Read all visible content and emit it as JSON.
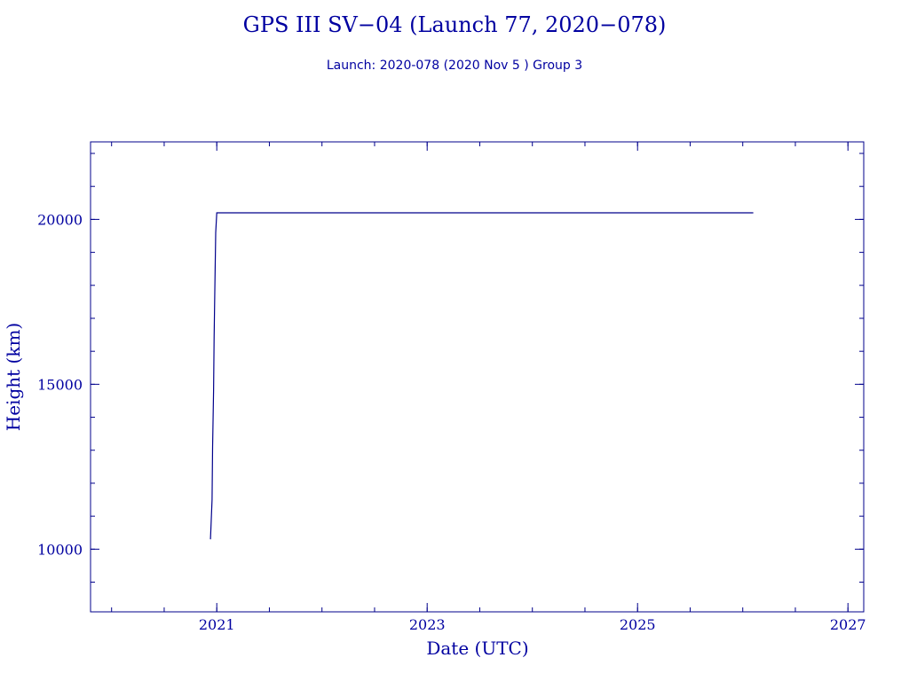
{
  "chart_data": {
    "type": "line",
    "title": "GPS III SV−04 (Launch 77, 2020−078)",
    "subtitle": "Launch: 2020-078  (2020 Nov  5 )  Group 3",
    "xlabel": "Date (UTC)",
    "ylabel": "Height (km)",
    "xlim": [
      2019.8,
      2027.15
    ],
    "ylim": [
      8100,
      22350
    ],
    "x_ticks": [
      2021,
      2023,
      2025,
      2027
    ],
    "y_ticks": [
      10000,
      15000,
      20000
    ],
    "grid": false,
    "series": [
      {
        "x": [
          2020.94,
          2020.955,
          2020.96,
          2020.97,
          2020.975,
          2020.98,
          2020.99,
          2021.0,
          2021.02,
          2026.1
        ],
        "y": [
          10300,
          11500,
          13100,
          14800,
          16400,
          17500,
          19600,
          20200,
          20200,
          20200
        ]
      }
    ],
    "color": "#00008b"
  }
}
